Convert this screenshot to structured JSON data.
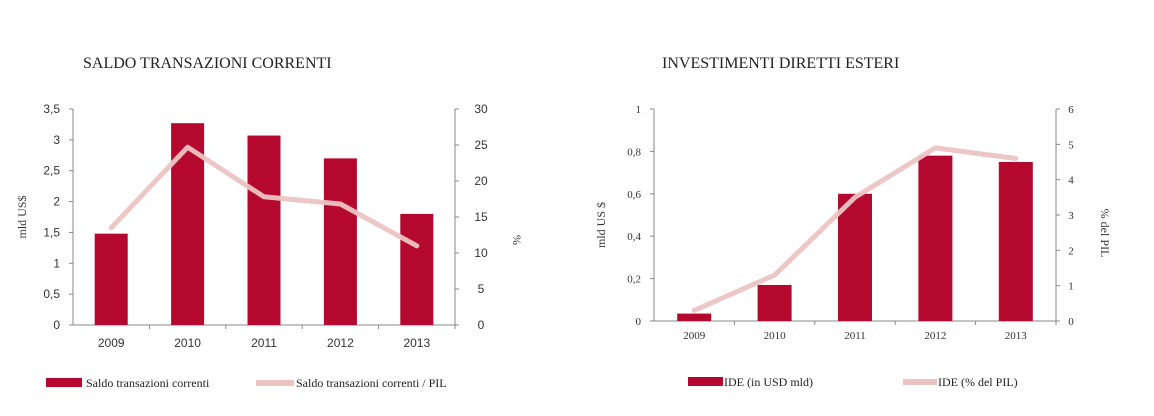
{
  "colors": {
    "bar": "#b5082e",
    "line": "#ecc3c3",
    "axis": "#888888",
    "text": "#222222"
  },
  "chart_data": [
    {
      "type": "bar",
      "title": "SALDO TRANSAZIONI CORRENTI",
      "categories": [
        "2009",
        "2010",
        "2011",
        "2012",
        "2013"
      ],
      "ylabel": "mld US$",
      "ylabel_right": "%",
      "ylim": [
        0,
        3.5
      ],
      "ylim_right": [
        0,
        30
      ],
      "yticks": [
        "0",
        "0,5",
        "1",
        "1,5",
        "2",
        "2,5",
        "3",
        "3,5"
      ],
      "yticks_right": [
        "0",
        "5",
        "10",
        "15",
        "20",
        "25",
        "30"
      ],
      "series": [
        {
          "name": "Saldo transazioni correnti",
          "kind": "bar",
          "axis": "left",
          "values": [
            1.48,
            3.27,
            3.07,
            2.7,
            1.8
          ]
        },
        {
          "name": "Saldo transazioni correnti / PIL",
          "kind": "line",
          "axis": "right",
          "values": [
            13.5,
            24.7,
            17.8,
            16.8,
            11.0
          ]
        }
      ],
      "legend_placement": "bottom"
    },
    {
      "type": "bar",
      "title": "INVESTIMENTI DIRETTI ESTERI",
      "categories": [
        "2009",
        "2010",
        "2011",
        "2012",
        "2013"
      ],
      "ylabel": "mld US $",
      "ylabel_right": "% del PIL",
      "ylim": [
        0,
        1
      ],
      "ylim_right": [
        0,
        6
      ],
      "yticks": [
        "0",
        "0,2",
        "0,4",
        "0,6",
        "0,8",
        "1"
      ],
      "yticks_right": [
        "0",
        "1",
        "2",
        "3",
        "4",
        "5",
        "6"
      ],
      "series": [
        {
          "name": "IDE (in USD mld)",
          "kind": "bar",
          "axis": "left",
          "values": [
            0.035,
            0.17,
            0.6,
            0.78,
            0.75
          ]
        },
        {
          "name": "IDE (% del PIL)",
          "kind": "line",
          "axis": "right",
          "values": [
            0.3,
            1.3,
            3.5,
            4.9,
            4.6
          ]
        }
      ],
      "legend_placement": "bottom"
    }
  ]
}
